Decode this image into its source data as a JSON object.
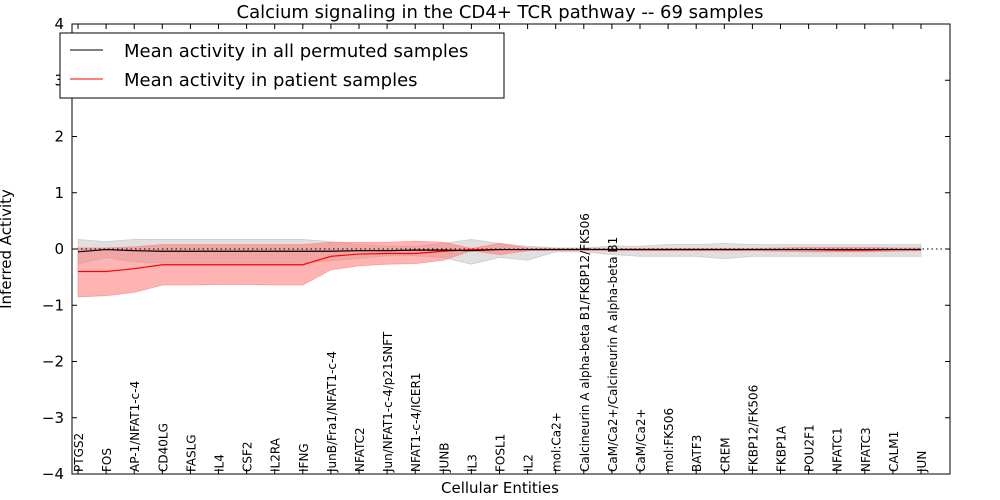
{
  "chart_data": {
    "type": "line",
    "title": "Calcium signaling in the CD4+ TCR pathway -- 69 samples",
    "xlabel": "Cellular Entities",
    "ylabel": "Inferred Activity",
    "ylim": [
      -4,
      4
    ],
    "yticks": [
      "4",
      "3",
      "2",
      "1",
      "0",
      "−1",
      "−2",
      "−3",
      "−4"
    ],
    "categories": [
      "PTGS2",
      "FOS",
      "AP-1/NFAT1-c-4",
      "CD40LG",
      "FASLG",
      "IL4",
      "CSF2",
      "IL2RA",
      "IFNG",
      "JunB/Fra1/NFAT1-c-4",
      "NFATC2",
      "Jun/NFAT1-c-4/p21SNFT",
      "NFAT1-c-4/ICER1",
      "JUNB",
      "IL3",
      "FOSL1",
      "IL2",
      "mol:Ca2+",
      "Calcineurin A alpha-beta B1/FKBP12/FK506",
      "CaM/Ca2+/Calcineurin A alpha-beta B1",
      "CaM/Ca2+",
      "mol:FK506",
      "BATF3",
      "CREM",
      "FKBP12/FK506",
      "FKBP1A",
      "POU2F1",
      "NFATC1",
      "NFATC3",
      "CALM1",
      "JUN"
    ],
    "legend": {
      "position": "top-left",
      "entries": [
        "Mean activity in all permuted samples",
        "Mean activity in patient samples"
      ]
    },
    "series": [
      {
        "name": "Mean activity in all permuted samples",
        "color": "#000000",
        "band_color": "#bbbbbb",
        "values": [
          -0.05,
          -0.01,
          -0.03,
          -0.04,
          -0.04,
          -0.04,
          -0.04,
          -0.04,
          -0.04,
          -0.04,
          -0.03,
          -0.03,
          -0.02,
          -0.02,
          -0.03,
          -0.01,
          -0.01,
          -0.01,
          -0.01,
          -0.01,
          -0.01,
          -0.01,
          -0.01,
          -0.01,
          -0.01,
          -0.01,
          -0.01,
          -0.01,
          -0.01,
          -0.01,
          -0.01
        ],
        "upper": [
          0.17,
          0.13,
          0.17,
          0.17,
          0.17,
          0.17,
          0.17,
          0.17,
          0.17,
          0.13,
          0.08,
          0.05,
          0.05,
          0.1,
          0.17,
          0.1,
          0.05,
          0.02,
          0.02,
          0.05,
          0.05,
          0.08,
          0.08,
          0.1,
          0.08,
          0.08,
          0.08,
          0.08,
          0.08,
          0.08,
          0.08
        ],
        "lower": [
          -0.27,
          -0.15,
          -0.23,
          -0.25,
          -0.25,
          -0.25,
          -0.25,
          -0.25,
          -0.25,
          -0.21,
          -0.17,
          -0.12,
          -0.12,
          -0.15,
          -0.27,
          -0.15,
          -0.2,
          -0.05,
          -0.05,
          -0.1,
          -0.13,
          -0.13,
          -0.13,
          -0.17,
          -0.13,
          -0.13,
          -0.13,
          -0.13,
          -0.13,
          -0.13,
          -0.13
        ]
      },
      {
        "name": "Mean activity in patient samples",
        "color": "#ff0000",
        "band_color": "#ff7777",
        "values": [
          -0.4,
          -0.4,
          -0.35,
          -0.28,
          -0.28,
          -0.28,
          -0.28,
          -0.28,
          -0.28,
          -0.13,
          -0.09,
          -0.08,
          -0.08,
          -0.04,
          -0.01,
          -0.01,
          -0.01,
          -0.01,
          -0.01,
          -0.01,
          -0.01,
          -0.01,
          -0.01,
          -0.01,
          -0.01,
          -0.01,
          -0.01,
          -0.02,
          -0.02,
          -0.01,
          -0.01
        ],
        "upper": [
          0.02,
          0.02,
          0.04,
          0.08,
          0.08,
          0.08,
          0.08,
          0.08,
          0.08,
          0.12,
          0.12,
          0.12,
          0.14,
          0.12,
          0.01,
          0.1,
          0.02,
          0.01,
          0.01,
          0.01,
          0.01,
          0.01,
          0.01,
          0.01,
          0.01,
          0.02,
          0.03,
          0.03,
          0.03,
          0.02,
          0.02
        ],
        "lower": [
          -0.85,
          -0.83,
          -0.77,
          -0.64,
          -0.64,
          -0.63,
          -0.63,
          -0.64,
          -0.64,
          -0.37,
          -0.3,
          -0.27,
          -0.26,
          -0.2,
          -0.03,
          -0.1,
          -0.03,
          -0.02,
          -0.02,
          -0.02,
          -0.03,
          -0.03,
          -0.03,
          -0.03,
          -0.03,
          -0.04,
          -0.05,
          -0.05,
          -0.05,
          -0.04,
          -0.03
        ]
      }
    ],
    "reference_line": {
      "y": 0,
      "style": "dotted"
    }
  }
}
